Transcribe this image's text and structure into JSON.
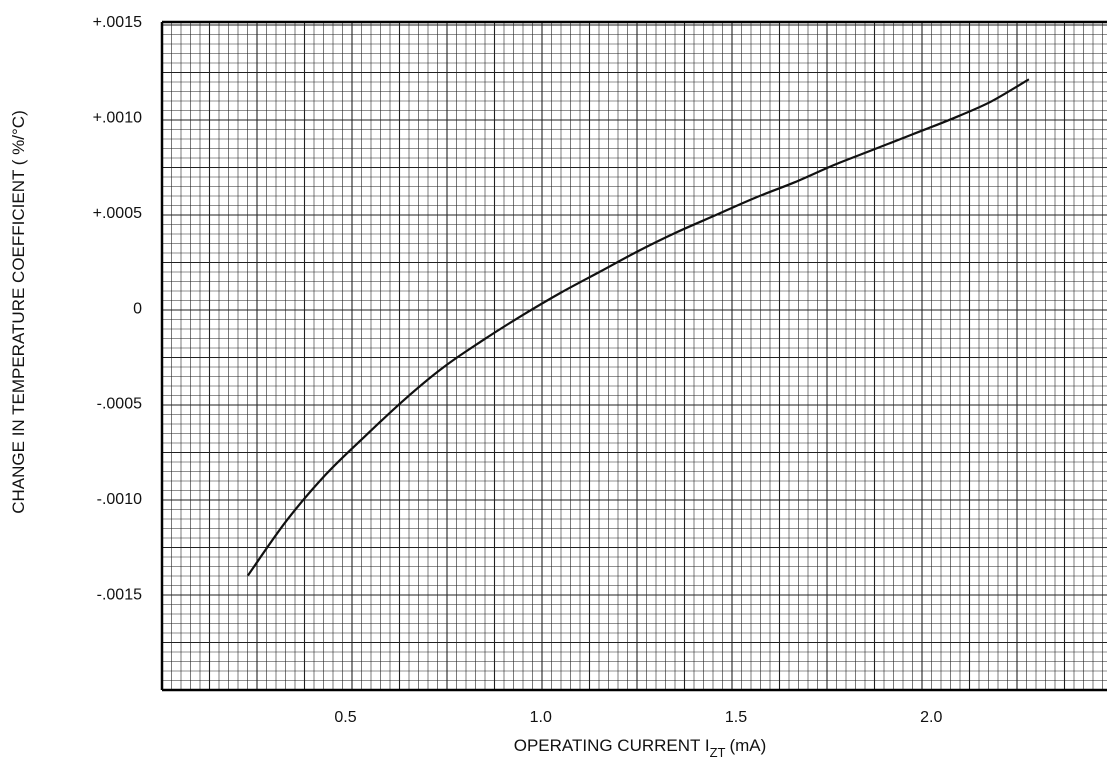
{
  "chart_data": {
    "type": "line",
    "xlabel": "OPERATING CURRENT I",
    "xlabel_subscript": "ZT",
    "xlabel_unit": "(mA)",
    "ylabel": "CHANGE IN TEMPERATURE COEFFICIENT ( %/°C)",
    "xlim": [
      0.03,
      2.45
    ],
    "ylim": [
      -0.002,
      0.0015
    ],
    "x_ticks": [
      0.5,
      1.0,
      1.5,
      2.0
    ],
    "x_tick_labels": [
      "0.5",
      "1.0",
      "1.5",
      "2.0"
    ],
    "y_ticks": [
      0.0015,
      0.001,
      0.0005,
      0,
      -0.0005,
      -0.001,
      -0.0015
    ],
    "y_tick_labels": [
      "+.0015",
      "+.0010",
      "+.0005",
      "0",
      "-.0005",
      "-.0010",
      "-.0015"
    ],
    "grid": true,
    "series": [
      {
        "x": [
          0.25,
          0.35,
          0.45,
          0.55,
          0.65,
          0.75,
          0.85,
          0.95,
          1.05,
          1.15,
          1.25,
          1.35,
          1.45,
          1.55,
          1.65,
          1.75,
          1.85,
          1.95,
          2.05,
          2.15,
          2.25
        ],
        "y": [
          -0.0014,
          -0.00111,
          -0.00087,
          -0.00067,
          -0.00048,
          -0.00031,
          -0.00017,
          -4e-05,
          8e-05,
          0.00019,
          0.0003,
          0.0004,
          0.00049,
          0.00058,
          0.00066,
          0.00075,
          0.00083,
          0.00091,
          0.00099,
          0.00108,
          0.0012
        ]
      }
    ],
    "colors": {
      "grid": "#222222",
      "line": "#111111",
      "background": "#ffffff"
    }
  }
}
